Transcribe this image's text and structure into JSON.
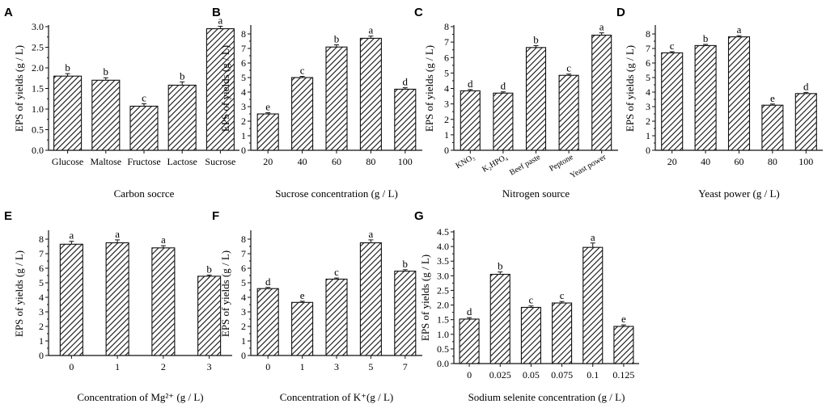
{
  "chart_data": [
    {
      "panel": "A",
      "type": "bar",
      "title": "",
      "xlabel": "Carbon socrce",
      "ylabel": "EPS of yields (g / L)",
      "ylim": [
        0,
        3.0
      ],
      "yticks": [
        "0.0",
        "0.5",
        "1.0",
        "1.5",
        "2.0",
        "2.5",
        "3.0"
      ],
      "categories": [
        "Glucose",
        "Maltose",
        "Fructose",
        "Lactose",
        "Sucrose"
      ],
      "values": [
        1.8,
        1.7,
        1.07,
        1.58,
        2.95
      ],
      "errors": [
        0.06,
        0.06,
        0.06,
        0.08,
        0.06
      ],
      "significance": [
        "b",
        "b",
        "c",
        "b",
        "a"
      ]
    },
    {
      "panel": "B",
      "type": "bar",
      "title": "",
      "xlabel": "Sucrose concentration (g / L)",
      "ylabel": "EPS of yields (g / L)",
      "ylim": [
        0,
        8.5
      ],
      "yticks": [
        "0",
        "1",
        "2",
        "3",
        "4",
        "5",
        "6",
        "7",
        "8"
      ],
      "categories": [
        "20",
        "40",
        "60",
        "80",
        "100"
      ],
      "values": [
        2.5,
        5.0,
        7.1,
        7.7,
        4.2
      ],
      "errors": [
        0.08,
        0.08,
        0.15,
        0.15,
        0.1
      ],
      "significance": [
        "e",
        "c",
        "b",
        "a",
        "d"
      ]
    },
    {
      "panel": "C",
      "type": "bar",
      "title": "",
      "xlabel": "Nitrogen source",
      "ylabel": "EPS of yields (g / L)",
      "ylim": [
        0,
        8
      ],
      "yticks": [
        "0",
        "1",
        "2",
        "3",
        "4",
        "5",
        "6",
        "7",
        "8"
      ],
      "categories": [
        "KNO₃",
        "K₂HPO₄",
        "Beef paste",
        "Peptone",
        "Yeast power"
      ],
      "values": [
        3.85,
        3.7,
        6.65,
        4.85,
        7.45
      ],
      "errors": [
        0.08,
        0.08,
        0.12,
        0.08,
        0.15
      ],
      "significance": [
        "d",
        "d",
        "b",
        "c",
        "a"
      ]
    },
    {
      "panel": "D",
      "type": "bar",
      "title": "",
      "xlabel": "Yeast power (g / L)",
      "ylabel": "EPS of yields (g / L)",
      "ylim": [
        0,
        8.5
      ],
      "yticks": [
        "0",
        "1",
        "2",
        "3",
        "4",
        "5",
        "6",
        "7",
        "8"
      ],
      "categories": [
        "20",
        "40",
        "60",
        "80",
        "100"
      ],
      "values": [
        6.7,
        7.2,
        7.8,
        3.1,
        3.9
      ],
      "errors": [
        0.08,
        0.08,
        0.08,
        0.08,
        0.08
      ],
      "significance": [
        "c",
        "b",
        "a",
        "e",
        "d"
      ]
    },
    {
      "panel": "E",
      "type": "bar",
      "title": "",
      "xlabel": "Concentration of Mg²⁺ (g / L)",
      "ylabel": "EPS of yields (g / L)",
      "ylim": [
        0,
        8.5
      ],
      "yticks": [
        "0",
        "1",
        "2",
        "3",
        "4",
        "5",
        "6",
        "7",
        "8"
      ],
      "categories": [
        "0",
        "1",
        "2",
        "3"
      ],
      "values": [
        7.65,
        7.75,
        7.4,
        5.45
      ],
      "errors": [
        0.2,
        0.2,
        0.15,
        0.08
      ],
      "significance": [
        "a",
        "a",
        "a",
        "b"
      ]
    },
    {
      "panel": "F",
      "type": "bar",
      "title": "",
      "xlabel": "Concentration of K⁺(g / L)",
      "ylabel": "EPS of yields (g / L)",
      "ylim": [
        0,
        8.5
      ],
      "yticks": [
        "0",
        "1",
        "2",
        "3",
        "4",
        "5",
        "6",
        "7",
        "8"
      ],
      "categories": [
        "0",
        "1",
        "3",
        "5",
        "7"
      ],
      "values": [
        4.6,
        3.65,
        5.25,
        7.75,
        5.8
      ],
      "errors": [
        0.08,
        0.08,
        0.08,
        0.2,
        0.1
      ],
      "significance": [
        "d",
        "e",
        "c",
        "a",
        "b"
      ]
    },
    {
      "panel": "G",
      "type": "bar",
      "title": "",
      "xlabel": "Sodium selenite concentration (g / L)",
      "ylabel": "EPS of yields (g / L)",
      "ylim": [
        0,
        4.5
      ],
      "yticks": [
        "0.0",
        "0.5",
        "1.0",
        "1.5",
        "2.0",
        "2.5",
        "3.0",
        "3.5",
        "4.0",
        "4.5"
      ],
      "categories": [
        "0",
        "0.025",
        "0.05",
        "0.075",
        "0.1",
        "0.125"
      ],
      "values": [
        1.52,
        3.05,
        1.92,
        2.07,
        3.97,
        1.27
      ],
      "errors": [
        0.05,
        0.08,
        0.05,
        0.05,
        0.15,
        0.05
      ],
      "significance": [
        "d",
        "b",
        "c",
        "c",
        "a",
        "e"
      ]
    }
  ]
}
